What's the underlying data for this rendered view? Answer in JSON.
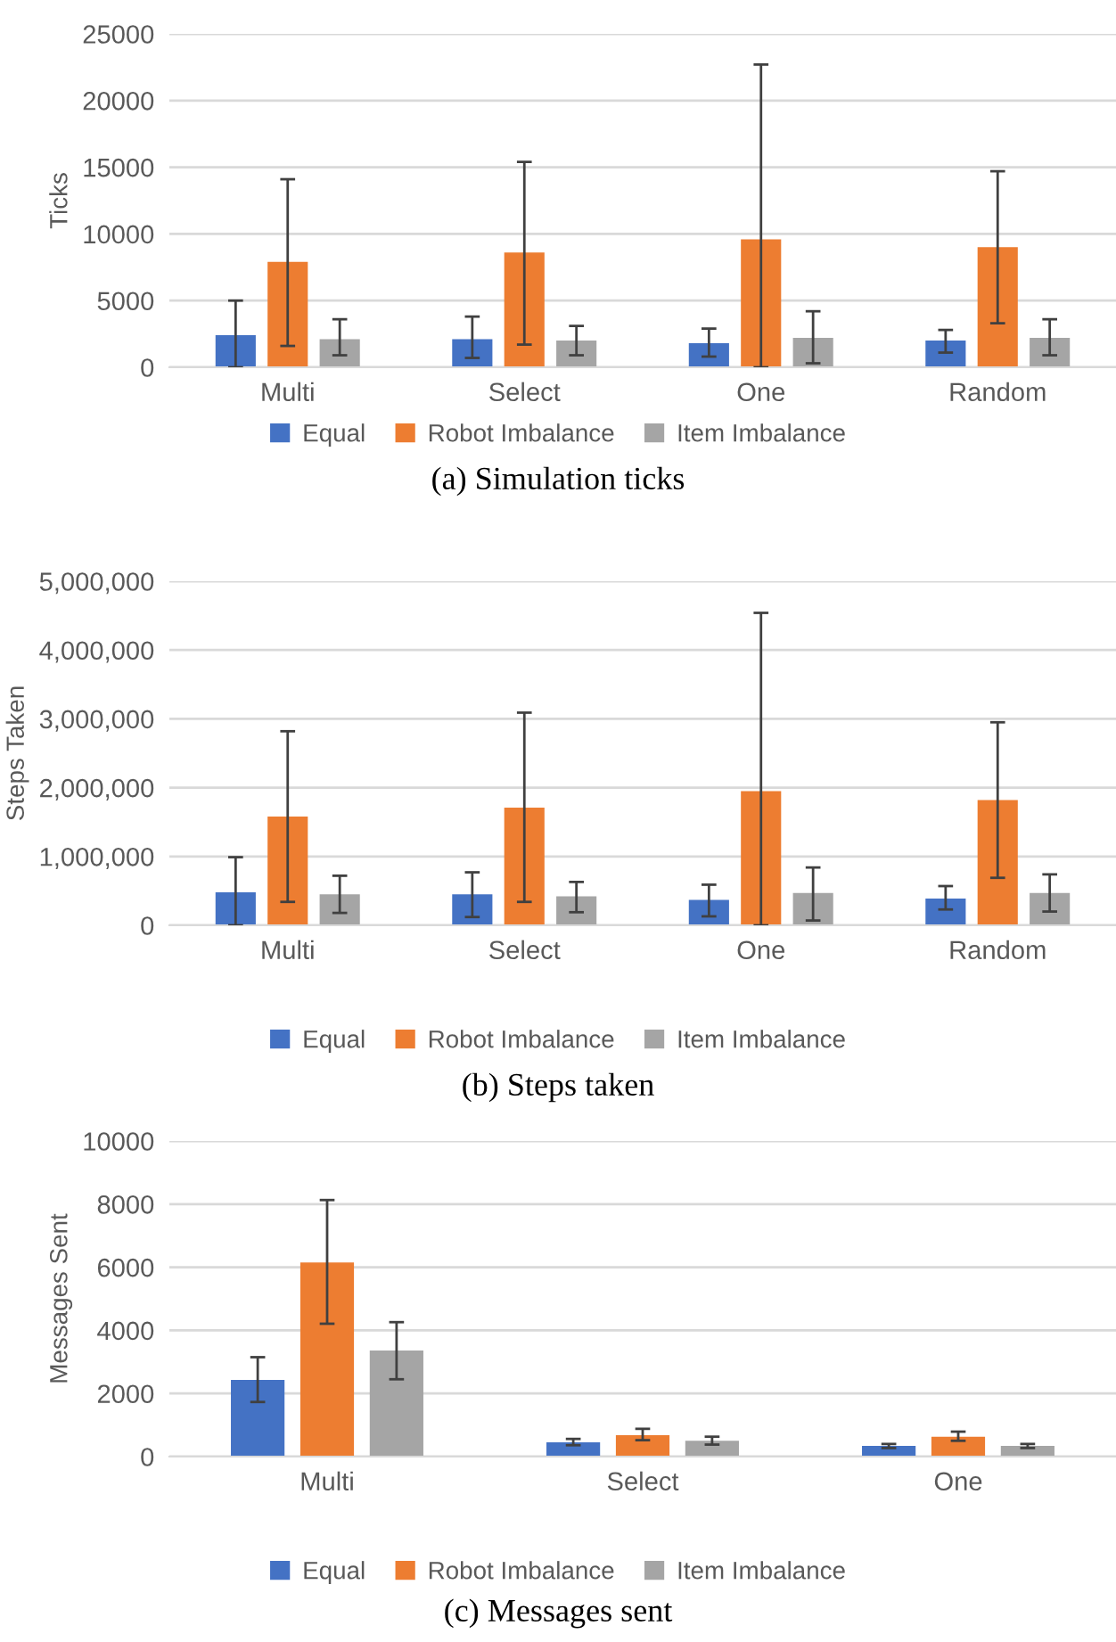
{
  "chart_data": [
    {
      "type": "bar",
      "title": "(a) Simulation ticks",
      "ylabel": "Ticks",
      "categories": [
        "Multi",
        "Select",
        "One",
        "Random"
      ],
      "ylim": [
        0,
        25000
      ],
      "yticks": [
        0,
        5000,
        10000,
        15000,
        20000,
        25000
      ],
      "grid": "y",
      "legend": "bottom",
      "series": [
        {
          "name": "Equal",
          "color": "#4472c4",
          "values": [
            2400,
            2100,
            1800,
            2000
          ],
          "errors": [
            [
              0,
              5000
            ],
            [
              700,
              3800
            ],
            [
              800,
              2900
            ],
            [
              1100,
              2800
            ]
          ]
        },
        {
          "name": "Robot Imbalance",
          "color": "#ed7d31",
          "values": [
            7900,
            8600,
            9600,
            9000
          ],
          "errors": [
            [
              1600,
              14100
            ],
            [
              1700,
              15400
            ],
            [
              0,
              22700
            ],
            [
              3300,
              14700
            ]
          ]
        },
        {
          "name": "Item Imbalance",
          "color": "#a5a5a5",
          "values": [
            2100,
            2000,
            2200,
            2200
          ],
          "errors": [
            [
              900,
              3600
            ],
            [
              900,
              3100
            ],
            [
              300,
              4200
            ],
            [
              900,
              3600
            ]
          ]
        }
      ]
    },
    {
      "type": "bar",
      "title": "(b) Steps taken",
      "ylabel": "Steps Taken",
      "categories": [
        "Multi",
        "Select",
        "One",
        "Random"
      ],
      "ylim": [
        0,
        5000000
      ],
      "yticks": [
        0,
        {
          "value": 1000000,
          "label": "1,000,000"
        },
        {
          "value": 2000000,
          "label": "2,000,000"
        },
        {
          "value": 3000000,
          "label": "3,000,000"
        },
        {
          "value": 4000000,
          "label": "4,000,000"
        },
        {
          "value": 5000000,
          "label": "5,000,000"
        }
      ],
      "grid": "y",
      "legend": "bottom",
      "series": [
        {
          "name": "Equal",
          "color": "#4472c4",
          "values": [
            480000,
            450000,
            370000,
            390000
          ],
          "errors": [
            [
              0,
              990000
            ],
            [
              120000,
              770000
            ],
            [
              130000,
              590000
            ],
            [
              230000,
              570000
            ]
          ]
        },
        {
          "name": "Robot Imbalance",
          "color": "#ed7d31",
          "values": [
            1580000,
            1710000,
            1950000,
            1820000
          ],
          "errors": [
            [
              340000,
              2820000
            ],
            [
              340000,
              3090000
            ],
            [
              0,
              4540000
            ],
            [
              690000,
              2950000
            ]
          ]
        },
        {
          "name": "Item Imbalance",
          "color": "#a5a5a5",
          "values": [
            450000,
            420000,
            470000,
            470000
          ],
          "errors": [
            [
              180000,
              720000
            ],
            [
              190000,
              630000
            ],
            [
              70000,
              840000
            ],
            [
              200000,
              740000
            ]
          ]
        }
      ]
    },
    {
      "type": "bar",
      "title": "(c) Messages sent",
      "ylabel": "Messages Sent",
      "categories": [
        "Multi",
        "Select",
        "One"
      ],
      "ylim": [
        0,
        10000
      ],
      "yticks": [
        0,
        2000,
        4000,
        6000,
        8000,
        10000
      ],
      "grid": "y",
      "legend": "bottom",
      "series": [
        {
          "name": "Equal",
          "color": "#4472c4",
          "values": [
            2430,
            450,
            340
          ],
          "errors": [
            [
              1730,
              3150
            ],
            [
              360,
              560
            ],
            [
              270,
              400
            ]
          ]
        },
        {
          "name": "Robot Imbalance",
          "color": "#ed7d31",
          "values": [
            6150,
            680,
            630
          ],
          "errors": [
            [
              4210,
              8130
            ],
            [
              520,
              880
            ],
            [
              500,
              790
            ]
          ]
        },
        {
          "name": "Item Imbalance",
          "color": "#a5a5a5",
          "values": [
            3360,
            500,
            340
          ],
          "errors": [
            [
              2450,
              4260
            ],
            [
              380,
              630
            ],
            [
              270,
              400
            ]
          ]
        }
      ]
    }
  ]
}
